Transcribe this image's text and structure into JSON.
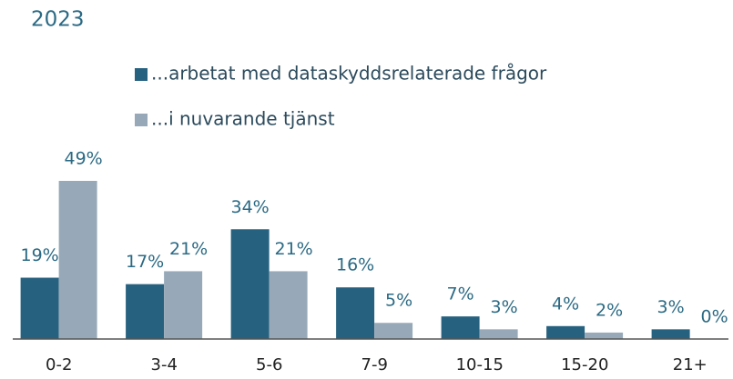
{
  "chart_data": {
    "type": "bar",
    "title": "2023",
    "categories": [
      "0-2",
      "3-4",
      "5-6",
      "7-9",
      "10-15",
      "15-20",
      "21+"
    ],
    "series": [
      {
        "name": "...arbetat med dataskyddsrelaterade frågor",
        "color": "#26617f",
        "values": [
          19,
          17,
          34,
          16,
          7,
          4,
          3
        ],
        "value_labels": [
          "19%",
          "17%",
          "34%",
          "16%",
          "7%",
          "4%",
          "3%"
        ]
      },
      {
        "name": "...i nuvarande tjänst",
        "color": "#97a9b8",
        "values": [
          49,
          21,
          21,
          5,
          3,
          2,
          0
        ],
        "value_labels": [
          "49%",
          "21%",
          "21%",
          "5%",
          "3%",
          "2%",
          "0%"
        ]
      }
    ]
  }
}
